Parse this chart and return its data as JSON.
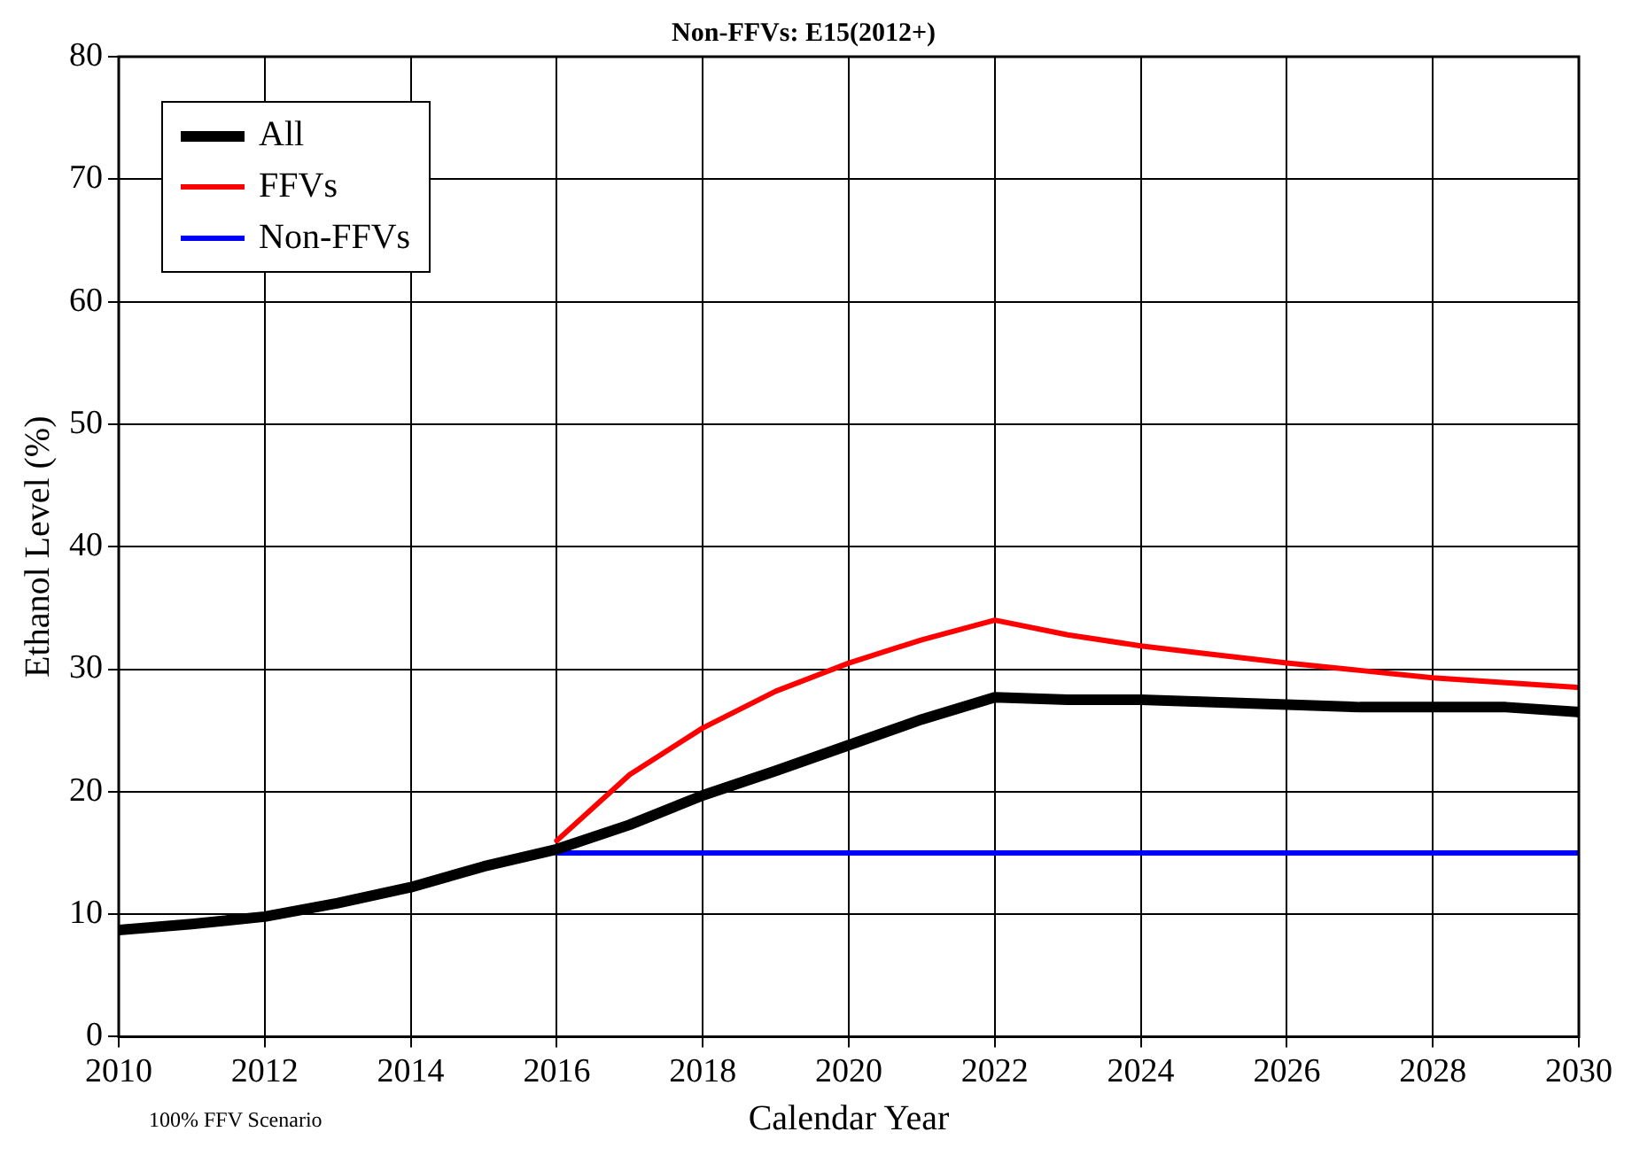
{
  "chart_data": {
    "type": "line",
    "title": "Non-FFVs: E15(2012+)",
    "xlabel": "Calendar Year",
    "ylabel": "Ethanol Level (%)",
    "annotations": [
      "100% FFV Scenario"
    ],
    "x": [
      2010,
      2011,
      2012,
      2013,
      2014,
      2015,
      2016,
      2017,
      2018,
      2019,
      2020,
      2021,
      2022,
      2023,
      2024,
      2025,
      2026,
      2027,
      2028,
      2029,
      2030
    ],
    "series": [
      {
        "name": "All",
        "color": "#000000",
        "values": [
          8.7,
          9.2,
          9.8,
          10.9,
          12.2,
          13.9,
          15.3,
          17.3,
          19.7,
          21.7,
          23.8,
          25.9,
          27.7,
          27.5,
          27.5,
          27.3,
          27.1,
          26.9,
          26.9,
          26.9,
          26.5
        ]
      },
      {
        "name": "FFVs",
        "color": "#ff0000",
        "values": [
          null,
          null,
          null,
          null,
          null,
          null,
          16.0,
          21.4,
          25.2,
          28.2,
          30.5,
          32.4,
          34.0,
          32.8,
          31.9,
          31.2,
          30.5,
          29.9,
          29.3,
          28.9,
          28.5
        ]
      },
      {
        "name": "Non-FFVs",
        "color": "#0000ff",
        "values": [
          null,
          null,
          null,
          null,
          null,
          null,
          15,
          15,
          15,
          15,
          15,
          15,
          15,
          15,
          15,
          15,
          15,
          15,
          15,
          15,
          15
        ]
      }
    ],
    "xlim": [
      2010,
      2030
    ],
    "xticks": [
      2010,
      2012,
      2014,
      2016,
      2018,
      2020,
      2022,
      2024,
      2026,
      2028,
      2030
    ],
    "ylim": [
      0,
      80
    ],
    "yticks": [
      0,
      10,
      20,
      30,
      40,
      50,
      60,
      70,
      80
    ],
    "grid": true,
    "legend": "top left",
    "marker": "none",
    "line_style": "solid"
  }
}
